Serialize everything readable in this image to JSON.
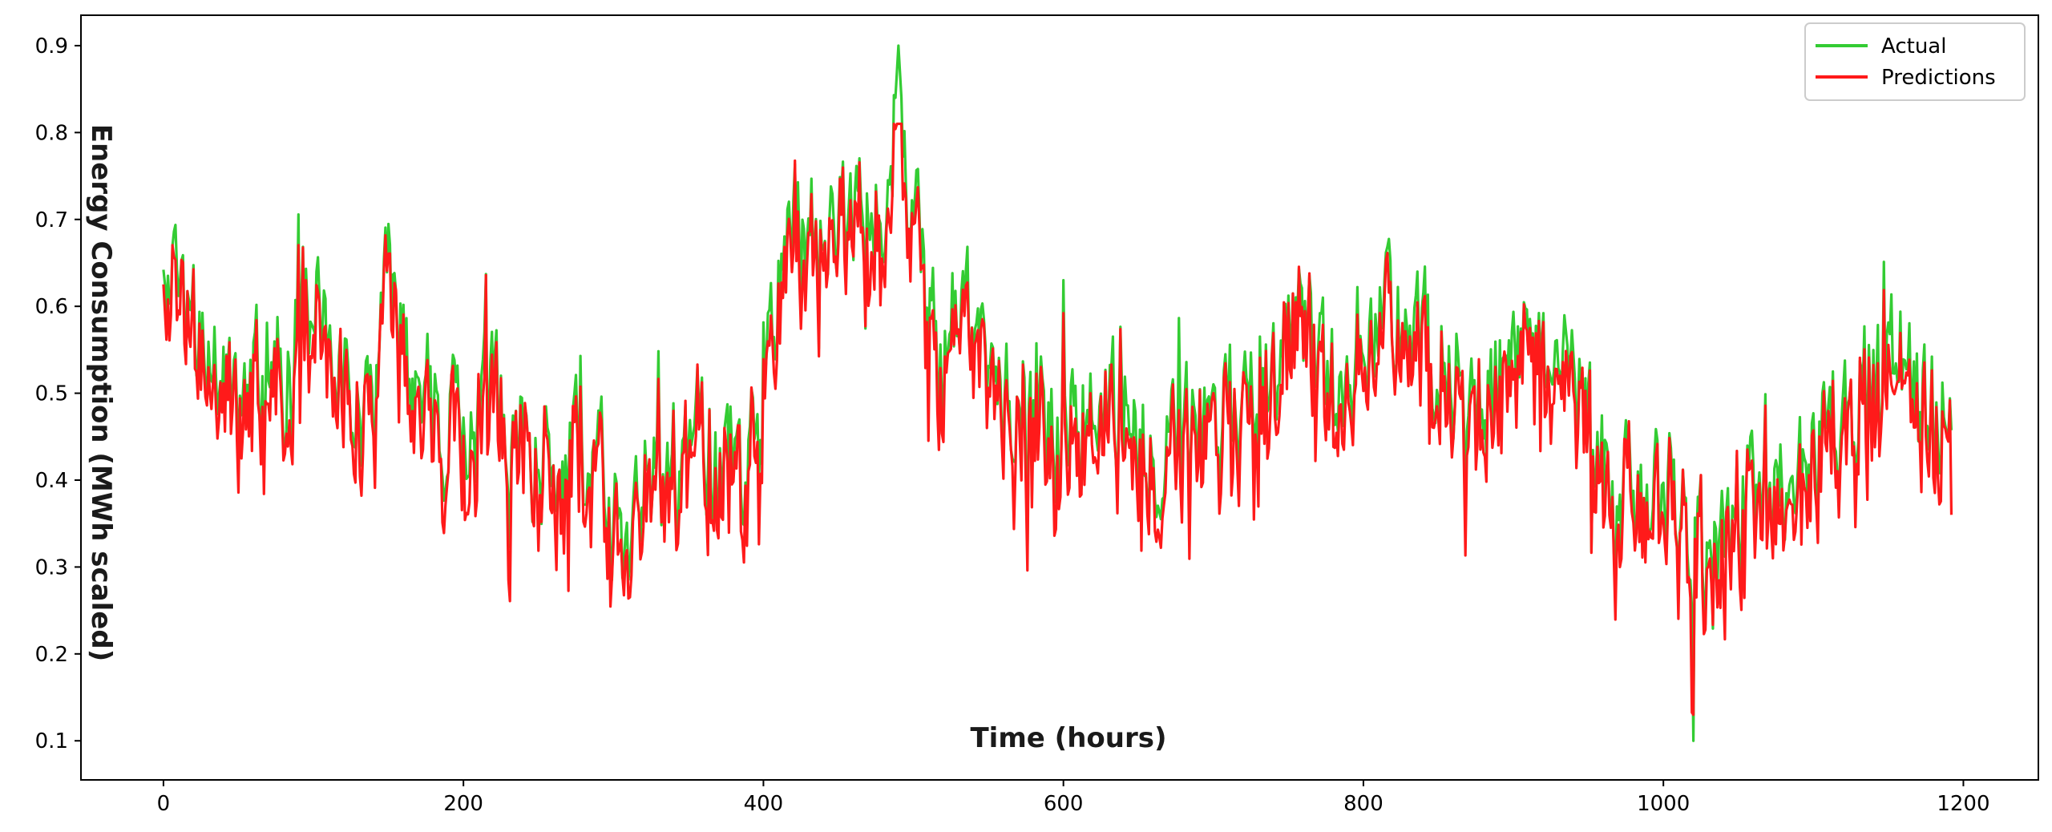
{
  "chart_data": {
    "type": "line",
    "title": "",
    "xlabel": "Time (hours)",
    "ylabel": "Energy Consumption (MWh scaled)",
    "xlim": [
      -55,
      1250
    ],
    "ylim": [
      0.055,
      0.935
    ],
    "xticks": [
      0,
      200,
      400,
      600,
      800,
      1000,
      1200
    ],
    "yticks": [
      0.1,
      0.2,
      0.3,
      0.4,
      0.5,
      0.6,
      0.7,
      0.8,
      0.9
    ],
    "grid": false,
    "legend_position": "top-right",
    "n_points": 1193,
    "anchors": {
      "x": [
        0,
        10,
        20,
        30,
        40,
        50,
        60,
        70,
        80,
        90,
        100,
        110,
        120,
        130,
        140,
        150,
        160,
        170,
        180,
        190,
        200,
        210,
        220,
        230,
        240,
        250,
        260,
        270,
        280,
        290,
        300,
        310,
        320,
        330,
        340,
        350,
        360,
        370,
        380,
        390,
        400,
        410,
        420,
        430,
        440,
        450,
        460,
        470,
        480,
        490,
        500,
        510,
        520,
        530,
        540,
        550,
        560,
        570,
        580,
        590,
        600,
        610,
        620,
        630,
        640,
        650,
        660,
        670,
        680,
        690,
        700,
        710,
        720,
        730,
        740,
        750,
        760,
        770,
        780,
        790,
        800,
        810,
        820,
        830,
        840,
        850,
        860,
        870,
        880,
        890,
        900,
        910,
        920,
        930,
        940,
        950,
        960,
        970,
        980,
        990,
        1000,
        1010,
        1020,
        1030,
        1040,
        1050,
        1060,
        1070,
        1080,
        1090,
        1100,
        1110,
        1120,
        1130,
        1140,
        1150,
        1160,
        1170,
        1180,
        1192
      ],
      "y": [
        0.58,
        0.62,
        0.56,
        0.55,
        0.5,
        0.47,
        0.52,
        0.53,
        0.5,
        0.58,
        0.6,
        0.57,
        0.52,
        0.47,
        0.46,
        0.62,
        0.56,
        0.5,
        0.47,
        0.45,
        0.47,
        0.46,
        0.48,
        0.47,
        0.44,
        0.43,
        0.44,
        0.42,
        0.41,
        0.4,
        0.36,
        0.35,
        0.39,
        0.41,
        0.42,
        0.44,
        0.45,
        0.43,
        0.42,
        0.44,
        0.47,
        0.63,
        0.7,
        0.69,
        0.68,
        0.68,
        0.67,
        0.7,
        0.75,
        0.79,
        0.68,
        0.6,
        0.55,
        0.58,
        0.56,
        0.52,
        0.5,
        0.47,
        0.46,
        0.47,
        0.47,
        0.46,
        0.48,
        0.5,
        0.47,
        0.45,
        0.45,
        0.44,
        0.45,
        0.45,
        0.46,
        0.48,
        0.5,
        0.52,
        0.54,
        0.56,
        0.58,
        0.55,
        0.52,
        0.54,
        0.56,
        0.58,
        0.6,
        0.58,
        0.57,
        0.56,
        0.53,
        0.51,
        0.5,
        0.51,
        0.53,
        0.55,
        0.54,
        0.52,
        0.49,
        0.45,
        0.4,
        0.37,
        0.37,
        0.39,
        0.38,
        0.35,
        0.33,
        0.33,
        0.35,
        0.37,
        0.38,
        0.38,
        0.4,
        0.41,
        0.43,
        0.44,
        0.46,
        0.49,
        0.52,
        0.54,
        0.55,
        0.52,
        0.49,
        0.5
      ]
    },
    "noise_amplitude": 0.07,
    "extremes": {
      "max": {
        "x": 490,
        "y": 0.9
      },
      "min": {
        "x": 1020,
        "y": 0.1
      }
    },
    "series": [
      {
        "name": "Actual",
        "color": "#33cc33"
      },
      {
        "name": "Predictions",
        "color": "#ff1a1a"
      }
    ]
  }
}
